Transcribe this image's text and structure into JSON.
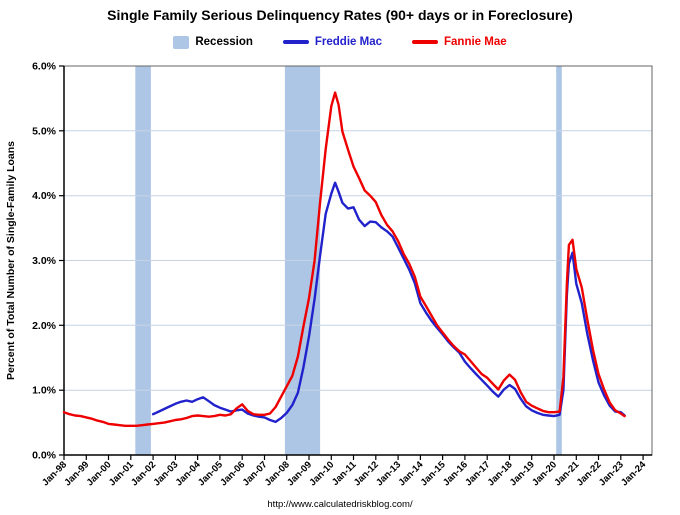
{
  "legend": [
    {
      "label": "Recession",
      "color": "#aec6e6",
      "label_color": "#000000"
    },
    {
      "label": "Freddie Mac",
      "color": "#2222cc",
      "label_color": "#2222cc"
    },
    {
      "label": "Fannie Mae",
      "color": "#ee0000",
      "label_color": "#ee0000"
    }
  ],
  "footer": {
    "url_text": "http://www.calculatedriskblog.com/"
  },
  "chart_data": {
    "type": "line",
    "title": "Single Family Serious Delinquency Rates (90+ days or in Foreclosure)",
    "xlabel": "",
    "ylabel": "Percent of Total Number of Single-Family Loans",
    "xlim": [
      1998,
      2024.4
    ],
    "ylim": [
      0,
      6
    ],
    "grid": true,
    "legend_position": "top",
    "grid_color": "#c6d3e3",
    "band_color": "#aec6e6",
    "x_tick_values": [
      1998,
      1999,
      2000,
      2001,
      2002,
      2003,
      2004,
      2005,
      2006,
      2007,
      2008,
      2009,
      2010,
      2011,
      2012,
      2013,
      2014,
      2015,
      2016,
      2017,
      2018,
      2019,
      2020,
      2021,
      2022,
      2023,
      2024
    ],
    "x_tick_labels": [
      "Jan-98",
      "Jan-99",
      "Jan-00",
      "Jan-01",
      "Jan-02",
      "Jan-03",
      "Jan-04",
      "Jan-05",
      "Jan-06",
      "Jan-07",
      "Jan-08",
      "Jan-09",
      "Jan-10",
      "Jan-11",
      "Jan-12",
      "Jan-13",
      "Jan-14",
      "Jan-15",
      "Jan-16",
      "Jan-17",
      "Jan-18",
      "Jan-19",
      "Jan-20",
      "Jan-21",
      "Jan-22",
      "Jan-23",
      "Jan-24"
    ],
    "y_tick_values": [
      0,
      1,
      2,
      3,
      4,
      5,
      6
    ],
    "y_tick_labels": [
      "0.0%",
      "1.0%",
      "2.0%",
      "3.0%",
      "4.0%",
      "5.0%",
      "6.0%"
    ],
    "recession_bands": [
      [
        2001.2,
        2001.9
      ],
      [
        2007.92,
        2009.5
      ],
      [
        2020.1,
        2020.35
      ]
    ],
    "series": [
      {
        "name": "Freddie Mac",
        "color": "#2222cc",
        "x": [
          2002.0,
          2002.25,
          2002.5,
          2002.75,
          2003.0,
          2003.25,
          2003.5,
          2003.75,
          2004.0,
          2004.25,
          2004.5,
          2004.75,
          2005.0,
          2005.25,
          2005.5,
          2005.75,
          2006.0,
          2006.25,
          2006.5,
          2006.75,
          2007.0,
          2007.25,
          2007.5,
          2007.75,
          2008.0,
          2008.25,
          2008.5,
          2008.75,
          2009.0,
          2009.25,
          2009.5,
          2009.75,
          2010.0,
          2010.17,
          2010.33,
          2010.5,
          2010.75,
          2011.0,
          2011.25,
          2011.5,
          2011.75,
          2012.0,
          2012.25,
          2012.5,
          2012.75,
          2013.0,
          2013.25,
          2013.5,
          2013.75,
          2014.0,
          2014.25,
          2014.5,
          2014.75,
          2015.0,
          2015.25,
          2015.5,
          2015.75,
          2016.0,
          2016.25,
          2016.5,
          2016.75,
          2017.0,
          2017.25,
          2017.5,
          2017.75,
          2018.0,
          2018.25,
          2018.5,
          2018.75,
          2019.0,
          2019.25,
          2019.5,
          2019.75,
          2020.0,
          2020.25,
          2020.42,
          2020.58,
          2020.67,
          2020.83,
          2021.0,
          2021.25,
          2021.5,
          2021.75,
          2022.0,
          2022.25,
          2022.5,
          2022.75,
          2023.0,
          2023.17
        ],
        "y": [
          0.63,
          0.67,
          0.71,
          0.75,
          0.79,
          0.82,
          0.84,
          0.82,
          0.86,
          0.89,
          0.83,
          0.77,
          0.73,
          0.7,
          0.67,
          0.69,
          0.7,
          0.64,
          0.61,
          0.59,
          0.58,
          0.54,
          0.51,
          0.57,
          0.65,
          0.77,
          0.96,
          1.35,
          1.83,
          2.41,
          3.08,
          3.72,
          4.03,
          4.2,
          4.06,
          3.89,
          3.8,
          3.82,
          3.63,
          3.53,
          3.6,
          3.59,
          3.51,
          3.45,
          3.37,
          3.2,
          3.03,
          2.86,
          2.65,
          2.34,
          2.2,
          2.07,
          1.96,
          1.86,
          1.75,
          1.66,
          1.58,
          1.44,
          1.34,
          1.25,
          1.16,
          1.07,
          0.98,
          0.9,
          1.01,
          1.08,
          1.02,
          0.87,
          0.75,
          0.69,
          0.65,
          0.62,
          0.61,
          0.6,
          0.62,
          1.0,
          2.48,
          2.95,
          3.12,
          2.64,
          2.34,
          1.86,
          1.46,
          1.12,
          0.92,
          0.76,
          0.67,
          0.66,
          0.61
        ]
      },
      {
        "name": "Fannie Mae",
        "color": "#ee0000",
        "x": [
          1998.0,
          1998.25,
          1998.5,
          1998.75,
          1999.0,
          1999.25,
          1999.5,
          1999.75,
          2000.0,
          2000.25,
          2000.5,
          2000.75,
          2001.0,
          2001.25,
          2001.5,
          2001.75,
          2002.0,
          2002.25,
          2002.5,
          2002.75,
          2003.0,
          2003.25,
          2003.5,
          2003.75,
          2004.0,
          2004.25,
          2004.5,
          2004.75,
          2005.0,
          2005.25,
          2005.5,
          2005.75,
          2006.0,
          2006.25,
          2006.5,
          2006.75,
          2007.0,
          2007.25,
          2007.5,
          2007.75,
          2008.0,
          2008.25,
          2008.5,
          2008.75,
          2009.0,
          2009.25,
          2009.5,
          2009.75,
          2010.0,
          2010.17,
          2010.33,
          2010.5,
          2010.75,
          2011.0,
          2011.25,
          2011.5,
          2011.75,
          2012.0,
          2012.25,
          2012.5,
          2012.75,
          2013.0,
          2013.25,
          2013.5,
          2013.75,
          2014.0,
          2014.25,
          2014.5,
          2014.75,
          2015.0,
          2015.25,
          2015.5,
          2015.75,
          2016.0,
          2016.25,
          2016.5,
          2016.75,
          2017.0,
          2017.25,
          2017.5,
          2017.75,
          2018.0,
          2018.25,
          2018.5,
          2018.75,
          2019.0,
          2019.25,
          2019.5,
          2019.75,
          2020.0,
          2020.25,
          2020.42,
          2020.58,
          2020.67,
          2020.83,
          2021.0,
          2021.25,
          2021.5,
          2021.75,
          2022.0,
          2022.25,
          2022.5,
          2022.75,
          2023.0,
          2023.17
        ],
        "y": [
          0.66,
          0.63,
          0.61,
          0.6,
          0.58,
          0.56,
          0.53,
          0.51,
          0.48,
          0.47,
          0.46,
          0.45,
          0.45,
          0.45,
          0.46,
          0.47,
          0.48,
          0.49,
          0.5,
          0.52,
          0.54,
          0.55,
          0.57,
          0.6,
          0.61,
          0.6,
          0.59,
          0.6,
          0.62,
          0.61,
          0.63,
          0.72,
          0.78,
          0.68,
          0.63,
          0.62,
          0.62,
          0.64,
          0.74,
          0.9,
          1.06,
          1.22,
          1.52,
          1.98,
          2.42,
          3.0,
          3.9,
          4.72,
          5.38,
          5.59,
          5.4,
          4.99,
          4.71,
          4.45,
          4.27,
          4.08,
          4.0,
          3.9,
          3.7,
          3.55,
          3.45,
          3.3,
          3.1,
          2.95,
          2.75,
          2.44,
          2.3,
          2.15,
          2.0,
          1.89,
          1.78,
          1.68,
          1.6,
          1.55,
          1.45,
          1.35,
          1.25,
          1.19,
          1.1,
          1.01,
          1.15,
          1.24,
          1.16,
          0.97,
          0.82,
          0.76,
          0.72,
          0.68,
          0.66,
          0.66,
          0.67,
          1.2,
          2.65,
          3.24,
          3.32,
          2.87,
          2.58,
          2.08,
          1.62,
          1.25,
          1.01,
          0.81,
          0.69,
          0.64,
          0.6
        ]
      }
    ]
  }
}
